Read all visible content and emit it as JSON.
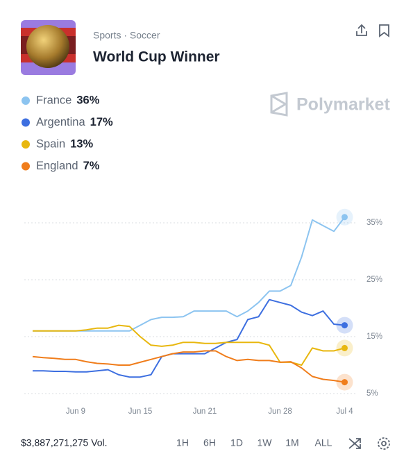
{
  "header": {
    "breadcrumb": "Sports · Soccer",
    "title": "World Cup Winner",
    "brand": "Polymarket"
  },
  "chart_data": {
    "type": "line",
    "x": [
      "Jun 5",
      "Jun 6",
      "Jun 7",
      "Jun 8",
      "Jun 9",
      "Jun 10",
      "Jun 11",
      "Jun 12",
      "Jun 13",
      "Jun 14",
      "Jun 15",
      "Jun 16",
      "Jun 17",
      "Jun 18",
      "Jun 19",
      "Jun 20",
      "Jun 21",
      "Jun 22",
      "Jun 23",
      "Jun 24",
      "Jun 25",
      "Jun 26",
      "Jun 27",
      "Jun 28",
      "Jun 29",
      "Jun 30",
      "Jul 1",
      "Jul 2",
      "Jul 3",
      "Jul 4"
    ],
    "series": [
      {
        "name": "France",
        "color": "#8cc4f0",
        "values": [
          16,
          16,
          16,
          16,
          16,
          16,
          16,
          16,
          16,
          16,
          17,
          18,
          18.4,
          18.4,
          18.5,
          19.5,
          19.5,
          19.5,
          19.5,
          18.5,
          19.5,
          21,
          23,
          23,
          24,
          29,
          35.5,
          34.5,
          33.5,
          36
        ]
      },
      {
        "name": "Argentina",
        "color": "#3d6fe0",
        "values": [
          9,
          9,
          8.9,
          8.9,
          8.8,
          8.8,
          9,
          9.2,
          8.3,
          7.9,
          7.9,
          8.3,
          11.5,
          12,
          12,
          12,
          12,
          13,
          14,
          14.5,
          18,
          18.5,
          21.5,
          21,
          20.5,
          19.3,
          18.7,
          19.5,
          17.2,
          17
        ]
      },
      {
        "name": "Spain",
        "color": "#e8b70e",
        "values": [
          16,
          16,
          16,
          16,
          16,
          16.2,
          16.5,
          16.5,
          17,
          16.8,
          15,
          13.5,
          13.3,
          13.5,
          14,
          14,
          13.8,
          13.8,
          14,
          14,
          14,
          14,
          13.5,
          10.5,
          10.5,
          10,
          13,
          12.5,
          12.5,
          13
        ]
      },
      {
        "name": "England",
        "color": "#f07d1b",
        "values": [
          11.5,
          11.3,
          11.2,
          11,
          11,
          10.6,
          10.3,
          10.2,
          10,
          10,
          10.5,
          11,
          11.5,
          12,
          12.3,
          12.3,
          12.5,
          12.5,
          11.5,
          10.8,
          11,
          10.8,
          10.8,
          10.5,
          10.6,
          9.5,
          8,
          7.5,
          7.3,
          7
        ]
      }
    ],
    "legend_values": [
      "36%",
      "17%",
      "13%",
      "7%"
    ],
    "ylim": [
      3,
      39
    ],
    "yticks": [
      {
        "value": 5,
        "label": "5%"
      },
      {
        "value": 15,
        "label": "15%"
      },
      {
        "value": 25,
        "label": "25%"
      },
      {
        "value": 35,
        "label": "35%"
      }
    ],
    "xticks": [
      "Jun 9",
      "Jun 15",
      "Jun 21",
      "Jun 28",
      "Jul 4"
    ],
    "grid": true
  },
  "footer": {
    "volume": "$3,887,271,275 Vol.",
    "ranges": [
      "1H",
      "6H",
      "1D",
      "1W",
      "1M",
      "ALL"
    ]
  }
}
